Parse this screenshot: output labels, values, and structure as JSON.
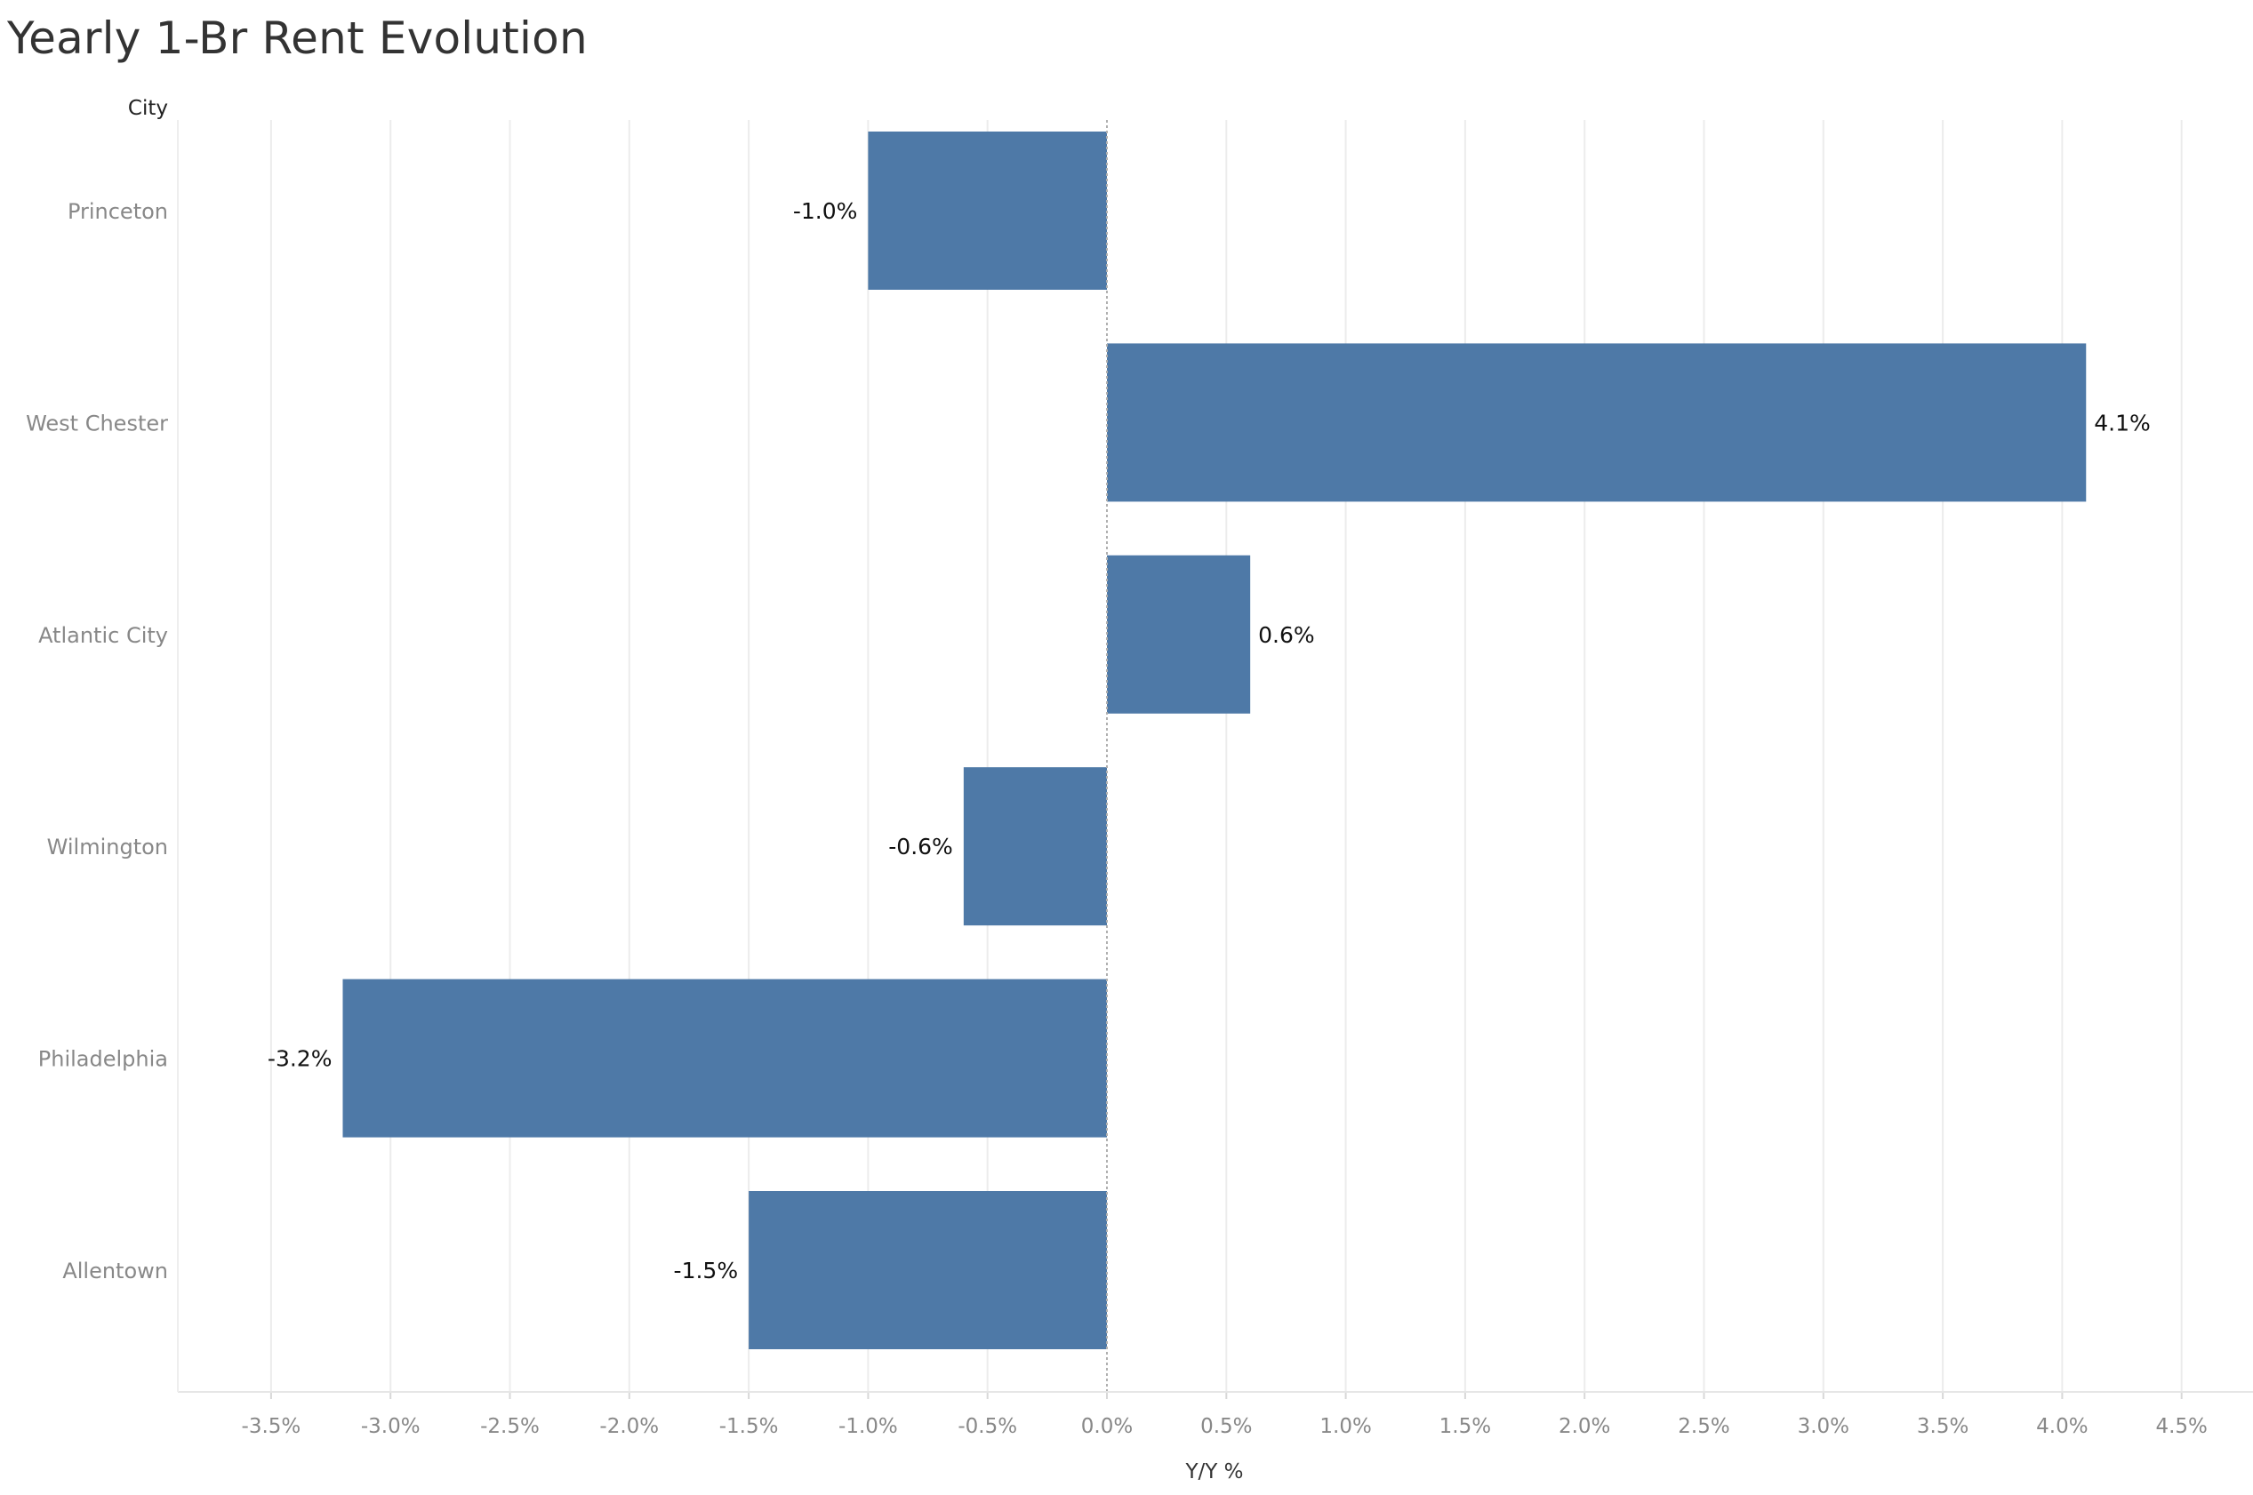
{
  "title": "Yearly 1-Br Rent Evolution",
  "colors": {
    "bar": "#4e79a7",
    "grid": "#ececec",
    "zero_line": "#b0b0b0",
    "tick_text": "#888888",
    "label_text": "#111111",
    "title_text": "#333333"
  },
  "chart_data": {
    "type": "bar",
    "orientation": "horizontal",
    "title": "Yearly 1-Br Rent Evolution",
    "ylabel": "City",
    "xlabel": "Y/Y %",
    "categories": [
      "Princeton",
      "West Chester",
      "Atlantic City",
      "Wilmington",
      "Philadelphia",
      "Allentown"
    ],
    "values": [
      -1.0,
      4.1,
      0.6,
      -0.6,
      -3.2,
      -1.5
    ],
    "data_labels": [
      "-1.0%",
      "4.1%",
      "0.6%",
      "-0.6%",
      "-3.2%",
      "-1.5%"
    ],
    "xlim": [
      -3.9,
      4.7
    ],
    "xticks": [
      -3.5,
      -3.0,
      -2.5,
      -2.0,
      -1.5,
      -1.0,
      -0.5,
      0.0,
      0.5,
      1.0,
      1.5,
      2.0,
      2.5,
      3.0,
      3.5,
      4.0,
      4.5
    ],
    "xtick_labels": [
      "-3.5%",
      "-3.0%",
      "-2.5%",
      "-2.0%",
      "-1.5%",
      "-1.0%",
      "-0.5%",
      "0.0%",
      "0.5%",
      "1.0%",
      "1.5%",
      "2.0%",
      "2.5%",
      "3.0%",
      "3.5%",
      "4.0%",
      "4.5%"
    ],
    "grid": true,
    "legend": "none"
  }
}
